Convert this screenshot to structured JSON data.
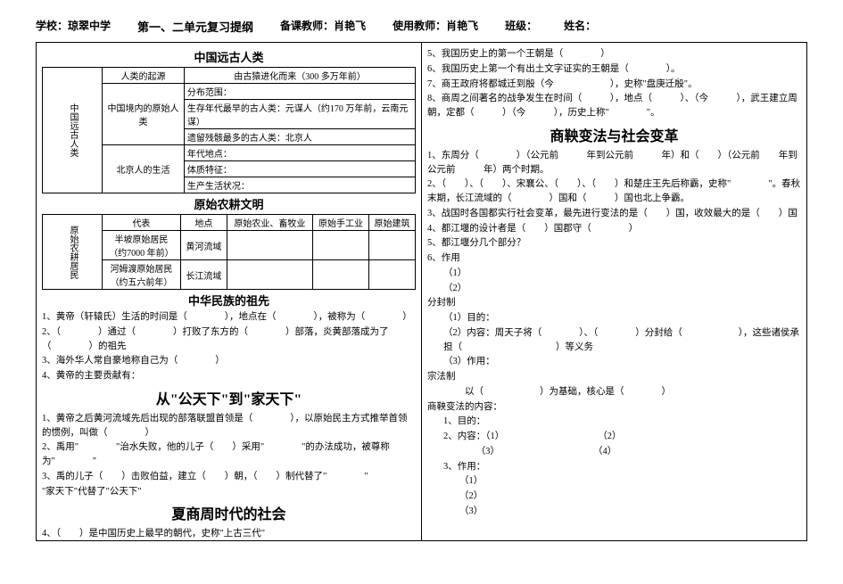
{
  "header": {
    "school_label": "学校：",
    "school": "琼翠中学",
    "title": "第一、二单元复习提纲",
    "prep_teacher_label": "备课教师：",
    "prep_teacher": "肖艳飞",
    "use_teacher_label": "使用教师：",
    "use_teacher": "肖艳飞",
    "class_label": "班级：",
    "name_label": "姓名："
  },
  "left": {
    "title1": "中国远古人类",
    "table1": {
      "side": "中国远古人类",
      "r1c1": "人类的起源",
      "r1c2": "由古猿进化而来（300 多万年前）",
      "r2c1": "中国境内的原始人类",
      "r2c2a": "分布范围：",
      "r2c2b": "生存年代最早的古人类：元谋人（约170 万年前，云南元谋）",
      "r2c2c": "遗留残骸最多的古人类：北京人",
      "r3c1": "北京人的生活",
      "r3c2a": "年代地点：",
      "r3c2b": "体质特征：",
      "r3c2c": "生产生活状况："
    },
    "title2": "原始农耕文明",
    "table2": {
      "side": "原始农耕居民",
      "h1": "代表",
      "h2": "地点",
      "h3": "原始农业、畜牧业",
      "h4": "原始手工业",
      "h5": "原始建筑",
      "r1c1a": "半坡原始居民",
      "r1c1b": "（约7000 年前）",
      "r1c2": "黄河流域",
      "r2c1a": "河姆渡原始居民",
      "r2c1b": "（约五六前年）",
      "r2c2": "长江流域"
    },
    "title3": "中华民族的祖先",
    "p1": "1、黄帝（轩辕氏）生活的时间是（　　　　），地点在（　　　　），被称为（　　　　）",
    "p2": "2、（　　　　）通过（　　　　）打败了东方的（　　　　）部落，炎黄部落成为了（　　　　）的祖先",
    "p3": "3、海外华人常自豪地称自己为（　　　　）",
    "p4": "4、黄帝的主要贡献有：",
    "big1": "从\"公天下\"到\"家天下\"",
    "p5": "1、黄帝之后黄河流域先后出现的部落联盟首领是（　　　　），以原始民主方式推举首领的惯例，叫做（　　　　）",
    "p6": "2、禹用\"　　　　\"治水失败，他的儿子（　　）采用\"　　　　\"的办法成功，被尊称为\"　　　　\"",
    "p7": "3、禹的儿子（　　）击败伯益，建立（　　）朝，（　　）制代替了\"　　　　\"",
    "p8": "\"家天下\"代替了\"公天下\"",
    "big2": "夏商周时代的社会",
    "p9": "4、（　　）是中国历史上最早的朝代，史称\"上古三代\""
  },
  "right": {
    "p1": "5、我国历史上的第一个王朝是（　　　　）",
    "p2": "6、我国历史上第一个有出土文字证实的王朝是（　　　　）。",
    "p3": "7、商王政府将都城迁到殷（今　　　　　　），史称\"盘庚迁殷\"。",
    "p4": "8、商周之间著名的战争发生在时间（　　　），地点（　　　）、（今　　　），武王建立周朝，定都（　　　）（今　　　），历史上称\"　　　　\"。",
    "big1": "商鞅变法与社会变革",
    "p5": "1、东周分（　　　　）（公元前　　　年到公元前　　　年）和（　　）（公元前　　年到公元前　　　年）两个时期。",
    "p6": "2、（　　）、（　　）、宋襄公、（　　）、（　　）和楚庄王先后称霸，史称\"　　　　\"。春秋末期，长江流域的（　　　　）国和（　　　）国也北上争霸。",
    "p7": "3、战国时各国都实行社会变革，最先进行变法的是（　　）国，收效最大的是（　　）国",
    "p8": "4、都江堰的设计者是（　　）国郡守（　　　　）",
    "p9": "5、都江堰分几个部分？",
    "p10": "6、作用",
    "p10a": "（1）",
    "p10b": "（2）",
    "p11": "分封制",
    "p11a": "（1）目的：",
    "p11b": "（2）内容：周天子将（　　　　）、（　　　　）分封给（　　　　　　），这些诸侯承担（　　　　　　　　　　）等义务",
    "p11c": "（3）作用：",
    "p12": "宗法制",
    "p12a": "　　　　以（　　　　　　）为基础，核心是（　　　　）",
    "p13": "商鞅变法的内容：",
    "p13a": "1、目的：",
    "p13b": "2、内容：（1）　　　　　　　　　　　（2）",
    "p13c": "　　　　（3）　　　　　　　　　　　（4）",
    "p13d": "3、作用：",
    "p13e": "（1）",
    "p13f": "（2）",
    "p13g": "（3）"
  }
}
